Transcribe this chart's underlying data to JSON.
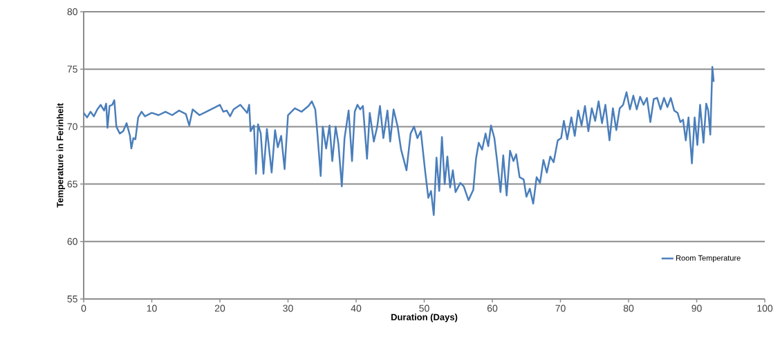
{
  "chart_data": {
    "type": "line",
    "xlabel": "Duration (Days)",
    "ylabel": "Temperature  in Ferinheit",
    "xlim": [
      0,
      100
    ],
    "xticks": [
      0,
      10,
      20,
      30,
      40,
      50,
      60,
      70,
      80,
      90,
      100
    ],
    "ylim": [
      55,
      80
    ],
    "yticks": [
      55,
      60,
      65,
      70,
      75,
      80
    ],
    "grid": "y",
    "legend": "bottom right",
    "marker": "none",
    "line_style": "solid",
    "series": [
      {
        "name": "Room Temperature",
        "color": "#4a7ebb",
        "x": [
          0,
          0.5,
          1,
          1.5,
          2,
          2.5,
          3,
          3.3,
          3.5,
          3.8,
          4.2,
          4.5,
          4.8,
          5.3,
          5.8,
          6.3,
          6.8,
          7,
          7.3,
          7.6,
          8,
          8.5,
          9,
          10,
          11,
          12,
          13,
          14,
          15,
          15.5,
          16,
          17,
          18,
          19,
          20,
          20.5,
          21,
          21.5,
          22,
          23,
          24,
          24.3,
          24.5,
          25,
          25.3,
          25.6,
          26,
          26.4,
          26.9,
          27.6,
          28.1,
          28.5,
          29,
          29.5,
          30,
          31,
          32,
          33,
          33.5,
          34,
          34.3,
          34.8,
          35.1,
          35.6,
          36.1,
          36.5,
          37,
          37.4,
          37.9,
          38.3,
          38.9,
          39.4,
          39.8,
          40.2,
          40.6,
          41,
          41.6,
          42,
          42.6,
          43.1,
          43.5,
          44,
          44.6,
          45,
          45.5,
          46.1,
          46.6,
          47.4,
          48,
          48.5,
          49,
          49.5,
          50.1,
          50.6,
          51,
          51.4,
          51.8,
          52.2,
          52.6,
          53,
          53.4,
          53.8,
          54.2,
          54.6,
          55.3,
          55.8,
          56.5,
          57.2,
          57.6,
          58,
          58.5,
          59,
          59.4,
          59.8,
          60.3,
          60.7,
          61.2,
          61.6,
          62.1,
          62.6,
          63.1,
          63.5,
          64,
          64.6,
          65,
          65.5,
          66,
          66.5,
          67,
          67.5,
          68,
          68.5,
          69,
          69.6,
          70.1,
          70.5,
          71,
          71.6,
          72.1,
          72.6,
          73.1,
          73.6,
          74.1,
          74.6,
          75.1,
          75.6,
          76.1,
          76.6,
          77.2,
          77.7,
          78.2,
          78.7,
          79.2,
          79.7,
          80.2,
          80.7,
          81.2,
          81.7,
          82.2,
          82.7,
          83.2,
          83.7,
          84.2,
          84.7,
          85.2,
          85.7,
          86.2,
          86.7,
          87.2,
          87.6,
          88,
          88.4,
          88.8,
          89.3,
          89.7,
          90.1,
          90.5,
          91,
          91.4,
          91.7,
          92,
          92.3,
          92.5
        ],
        "values": [
          71.2,
          70.8,
          71.3,
          70.9,
          71.5,
          71.9,
          71.4,
          72.0,
          69.9,
          71.8,
          71.9,
          72.3,
          70.0,
          69.4,
          69.6,
          70.3,
          69.2,
          68.1,
          69.0,
          68.9,
          70.8,
          71.3,
          70.9,
          71.2,
          71.0,
          71.3,
          71.0,
          71.4,
          71.1,
          70.1,
          71.5,
          71.0,
          71.3,
          71.6,
          71.9,
          71.3,
          71.4,
          70.9,
          71.5,
          71.9,
          71.2,
          71.9,
          69.6,
          70.1,
          65.9,
          70.2,
          69.4,
          65.9,
          69.8,
          66.0,
          69.7,
          68.2,
          69.2,
          66.3,
          71.0,
          71.6,
          71.3,
          71.8,
          72.2,
          71.5,
          69.5,
          65.7,
          70.0,
          68.1,
          70.1,
          67.0,
          70.0,
          68.5,
          64.8,
          69.0,
          71.4,
          67.0,
          71.3,
          71.9,
          71.5,
          71.8,
          67.2,
          71.2,
          68.7,
          70.0,
          71.8,
          69.0,
          71.4,
          68.7,
          71.5,
          70.0,
          68.0,
          66.2,
          69.4,
          70.0,
          69.0,
          69.6,
          66.3,
          63.8,
          64.4,
          62.3,
          67.3,
          64.4,
          69.1,
          65.0,
          67.4,
          64.7,
          66.2,
          64.3,
          65.1,
          64.8,
          63.6,
          64.5,
          67.2,
          68.6,
          68.0,
          69.4,
          68.3,
          70.1,
          69.0,
          67.0,
          64.3,
          67.5,
          64.0,
          67.9,
          67.0,
          67.6,
          65.6,
          65.4,
          63.9,
          64.6,
          63.3,
          65.6,
          65.1,
          67.1,
          66.0,
          67.4,
          66.9,
          68.8,
          69.0,
          70.5,
          68.9,
          70.8,
          69.2,
          71.4,
          70.1,
          71.8,
          69.6,
          71.6,
          70.5,
          72.2,
          70.3,
          71.9,
          68.8,
          71.6,
          69.7,
          71.6,
          71.9,
          73.0,
          71.5,
          72.7,
          71.5,
          72.6,
          71.9,
          72.5,
          70.4,
          72.4,
          72.5,
          71.5,
          72.5,
          71.7,
          72.5,
          71.4,
          71.2,
          70.4,
          70.6,
          68.8,
          70.8,
          66.8,
          70.8,
          68.4,
          71.9,
          68.6,
          72.0,
          71.4,
          69.3,
          75.2,
          73.9
        ]
      }
    ]
  }
}
